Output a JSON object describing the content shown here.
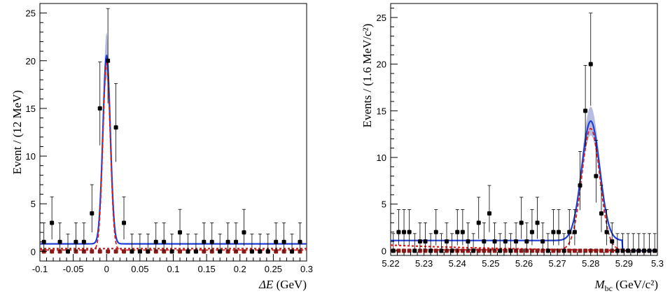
{
  "chart_data": [
    {
      "type": "scatter",
      "xlabel_var": "ΔE",
      "xlabel_unit": " (GeV)",
      "ylabel": "Event / (12 MeV)",
      "xlim": [
        -0.1,
        0.3
      ],
      "ylim": [
        -1,
        26
      ],
      "xticks": [
        -0.1,
        -0.05,
        0,
        0.05,
        0.1,
        0.15,
        0.2,
        0.25,
        0.3
      ],
      "xtick_labels": [
        "-0.1",
        "-0.05",
        "0",
        "0.05",
        "0.1",
        "0.15",
        "0.2",
        "0.25",
        "0.3"
      ],
      "yticks": [
        0,
        5,
        10,
        15,
        20,
        25
      ],
      "ytick_labels": [
        "0",
        "5",
        "10",
        "15",
        "20",
        "25"
      ],
      "grid": false,
      "data_points": {
        "x": [
          -0.094,
          -0.082,
          -0.07,
          -0.058,
          -0.046,
          -0.034,
          -0.022,
          -0.01,
          0.002,
          0.014,
          0.026,
          0.038,
          0.05,
          0.062,
          0.074,
          0.086,
          0.098,
          0.11,
          0.122,
          0.134,
          0.146,
          0.158,
          0.17,
          0.182,
          0.194,
          0.206,
          0.218,
          0.23,
          0.242,
          0.254,
          0.266,
          0.278,
          0.29
        ],
        "y": [
          1,
          3,
          1,
          0,
          1,
          1,
          4,
          15,
          20,
          13,
          3,
          0,
          0,
          0,
          1,
          1,
          0,
          2,
          0,
          0,
          1,
          1,
          0,
          1,
          1,
          2,
          0,
          0,
          0,
          1,
          1,
          0,
          1
        ]
      },
      "control_points": {
        "x": [
          -0.094,
          -0.082,
          -0.07,
          -0.058,
          -0.046,
          -0.034,
          -0.022,
          -0.01,
          0.002,
          0.014,
          0.026,
          0.038,
          0.05,
          0.062,
          0.074,
          0.086,
          0.098,
          0.11,
          0.122,
          0.134,
          0.146,
          0.158,
          0.17,
          0.182,
          0.194,
          0.206,
          0.218,
          0.23,
          0.242,
          0.254,
          0.266,
          0.278,
          0.29
        ],
        "y": [
          0,
          0,
          0,
          0,
          0,
          0,
          0,
          0,
          0,
          0,
          0,
          0,
          0,
          0,
          0,
          0,
          0,
          0,
          0,
          0,
          0,
          0,
          0,
          0,
          0,
          0,
          0,
          0,
          0,
          0,
          0,
          0,
          0
        ]
      },
      "total_fit": {
        "type": "peak-plus-flat",
        "mean": 0.0,
        "sigma": 0.0055,
        "amplitude": 19.8,
        "background": 0.8
      },
      "signal_fit": {
        "type": "peak-plus-flat",
        "mean": 0.0,
        "sigma": 0.0055,
        "amplitude": 19.6,
        "background": 0.15
      },
      "background_fit": {
        "type": "flat",
        "level": 0.3
      },
      "colors": {
        "data": "#000000",
        "control": "#8b1a1a",
        "total_fit": "#1f3fd6",
        "signal_fit": "#d62020",
        "background_fit": "#d62020"
      }
    },
    {
      "type": "scatter",
      "xlabel_var": "M",
      "xlabel_sub": "bc",
      "xlabel_unit": " (GeV/c²)",
      "ylabel": "Events / (1.6 MeV/c²)",
      "xlim": [
        5.22,
        5.3
      ],
      "ylim": [
        -0.5,
        26.5
      ],
      "xticks": [
        5.22,
        5.23,
        5.24,
        5.25,
        5.26,
        5.27,
        5.28,
        5.29,
        5.3
      ],
      "xtick_labels": [
        "5.22",
        "5.23",
        "5.24",
        "5.25",
        "5.26",
        "5.27",
        "5.28",
        "5.29",
        "5.3"
      ],
      "yticks": [
        0,
        5,
        10,
        15,
        20,
        25
      ],
      "ytick_labels": [
        "0",
        "5",
        "10",
        "15",
        "20",
        "25"
      ],
      "grid": false,
      "data_points": {
        "x": [
          5.2208,
          5.2224,
          5.224,
          5.2256,
          5.2272,
          5.2288,
          5.2304,
          5.232,
          5.2336,
          5.2352,
          5.2368,
          5.2384,
          5.24,
          5.2416,
          5.2432,
          5.2448,
          5.2464,
          5.248,
          5.2496,
          5.2512,
          5.2528,
          5.2544,
          5.256,
          5.2576,
          5.2592,
          5.2608,
          5.2624,
          5.264,
          5.2656,
          5.2672,
          5.2688,
          5.2704,
          5.272,
          5.2736,
          5.2752,
          5.2768,
          5.2784,
          5.28,
          5.2816,
          5.2832,
          5.2848,
          5.2864,
          5.288,
          5.2896,
          5.2912,
          5.2928,
          5.2944,
          5.296,
          5.2976,
          5.2992
        ],
        "y": [
          0,
          2,
          2,
          2,
          0,
          1,
          1,
          0,
          2,
          0,
          1,
          0,
          2,
          2,
          1,
          0,
          3,
          1,
          4,
          1,
          0,
          1,
          0,
          1,
          3,
          1,
          2,
          3,
          1,
          0,
          2,
          2,
          0,
          2,
          2,
          7,
          15,
          20,
          8,
          4,
          2,
          1,
          0,
          0,
          0,
          0,
          0,
          0,
          0,
          0
        ]
      },
      "control_points": {
        "x": [
          5.2208,
          5.2224,
          5.224,
          5.2256,
          5.2272,
          5.2288,
          5.2304,
          5.232,
          5.2336,
          5.2352,
          5.2368,
          5.2384,
          5.24,
          5.2416,
          5.2432,
          5.2448,
          5.2464,
          5.248,
          5.2496,
          5.2512,
          5.2528,
          5.2544,
          5.256,
          5.2576,
          5.2592,
          5.2608,
          5.2624,
          5.264,
          5.2656,
          5.2672,
          5.2688,
          5.2704,
          5.272,
          5.2736,
          5.2752,
          5.2768,
          5.2784,
          5.28,
          5.2816,
          5.2832,
          5.2848,
          5.2864,
          5.288,
          5.2896,
          5.2912,
          5.2928,
          5.2944,
          5.296,
          5.2976,
          5.2992
        ],
        "y": [
          0,
          0,
          0,
          0,
          0,
          0,
          0,
          0,
          0,
          0,
          0,
          0,
          0,
          0,
          0,
          0,
          0,
          0,
          0,
          0,
          0,
          0,
          0,
          0,
          0,
          0,
          0,
          0,
          0,
          0,
          0,
          0,
          0,
          0,
          0,
          0,
          0,
          0,
          0,
          0,
          0,
          0,
          0,
          0,
          0,
          0,
          0,
          0,
          0,
          0
        ]
      },
      "total_fit": {
        "type": "peak-plus-flat",
        "mean": 5.28,
        "sigma": 0.0027,
        "amplitude": 12.8,
        "background": 1.1,
        "endpoint": 5.2895
      },
      "signal_fit": {
        "type": "peak-plus-flat",
        "mean": 5.28,
        "sigma": 0.0027,
        "amplitude": 13.0,
        "background": 0.1,
        "endpoint": 5.2895
      },
      "background_fit": {
        "type": "argus-like",
        "level": 0.6,
        "endpoint": 5.2895
      },
      "colors": {
        "data": "#000000",
        "control": "#8b1a1a",
        "total_fit": "#1f3fd6",
        "signal_fit": "#d62020",
        "background_fit": "#d62020"
      }
    }
  ]
}
